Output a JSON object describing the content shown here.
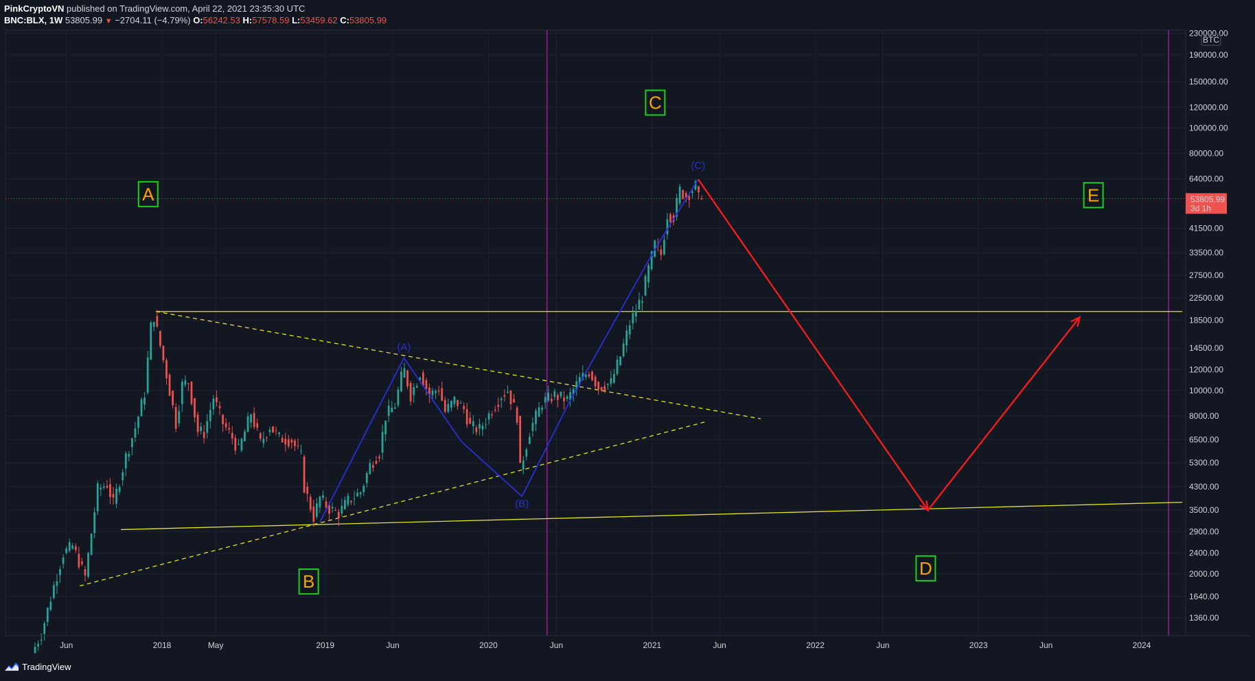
{
  "header": {
    "author": "PinkCryptoVN",
    "published": "published on TradingView.com, April 22, 2021 23:35:30 UTC",
    "symbol": "BNC:BLX, 1W",
    "last": "53805.99",
    "change": "−2704.11 (−4.79%)",
    "o_label": "O:",
    "o_value": "56242.53",
    "h_label": "H:",
    "h_value": "57578.59",
    "l_label": "L:",
    "l_value": "53459.62",
    "c_label": "C:",
    "c_value": "53805.99"
  },
  "footer": {
    "brand": "TradingView",
    "logo_icon": "tradingview-logo-icon"
  },
  "colors": {
    "background": "#131722",
    "up": "#26a69a",
    "down": "#ef5350",
    "support_line": "#e6e61e",
    "wave_line": "#2b2fd3",
    "projection": "#f21d1d",
    "vertical_marker": "#b61fb6",
    "label_box": "#1ad11a",
    "label_text": "#f7a600"
  },
  "chart_data": {
    "type": "candlestick",
    "title": "BNC:BLX, 1W",
    "price_scale": "log",
    "currency_label": "BTC",
    "last_price": "53805.99",
    "last_price_countdown": "3d 1h",
    "y_ticks": [
      "230000.00",
      "190000.00",
      "150000.00",
      "120000.00",
      "100000.00",
      "80000.00",
      "64000.00",
      "41500.00",
      "33500.00",
      "27500.00",
      "22500.00",
      "18500.00",
      "14500.00",
      "12000.00",
      "10000.00",
      "8000.00",
      "6500.00",
      "5300.00",
      "4300.00",
      "3500.00",
      "2900.00",
      "2400.00",
      "2000.00",
      "1640.00",
      "1360.00"
    ],
    "x_ticks": [
      {
        "label": "Jun",
        "date": "2017-06-01"
      },
      {
        "label": "2018",
        "date": "2018-01-01"
      },
      {
        "label": "May",
        "date": "2018-05-01"
      },
      {
        "label": "2019",
        "date": "2019-01-01"
      },
      {
        "label": "Jun",
        "date": "2019-06-01"
      },
      {
        "label": "2020",
        "date": "2020-01-01"
      },
      {
        "label": "Jun",
        "date": "2020-06-01"
      },
      {
        "label": "2021",
        "date": "2021-01-01"
      },
      {
        "label": "Jun",
        "date": "2021-06-01"
      },
      {
        "label": "2022",
        "date": "2022-01-01"
      },
      {
        "label": "Jun",
        "date": "2022-06-01"
      },
      {
        "label": "2023",
        "date": "2023-01-01"
      },
      {
        "label": "Jun",
        "date": "2023-06-01"
      },
      {
        "label": "2024",
        "date": "2024-01-01"
      }
    ],
    "price_path": [
      [
        "2017-03-20",
        1000
      ],
      [
        "2017-04-10",
        1180
      ],
      [
        "2017-05-08",
        1800
      ],
      [
        "2017-05-29",
        2400
      ],
      [
        "2017-06-19",
        2550
      ],
      [
        "2017-07-17",
        1950
      ],
      [
        "2017-08-14",
        4200
      ],
      [
        "2017-09-04",
        4400
      ],
      [
        "2017-09-18",
        3700
      ],
      [
        "2017-10-16",
        5600
      ],
      [
        "2017-11-06",
        7200
      ],
      [
        "2017-11-27",
        9800
      ],
      [
        "2017-12-11",
        17500
      ],
      [
        "2017-12-18",
        19200
      ],
      [
        "2018-01-01",
        14800
      ],
      [
        "2018-01-15",
        11500
      ],
      [
        "2018-02-05",
        7500
      ],
      [
        "2018-02-19",
        10500
      ],
      [
        "2018-03-05",
        10800
      ],
      [
        "2018-03-26",
        7000
      ],
      [
        "2018-04-09",
        6900
      ],
      [
        "2018-04-30",
        9400
      ],
      [
        "2018-05-21",
        7500
      ],
      [
        "2018-06-11",
        6600
      ],
      [
        "2018-06-25",
        5900
      ],
      [
        "2018-07-23",
        8200
      ],
      [
        "2018-08-13",
        6300
      ],
      [
        "2018-09-03",
        7300
      ],
      [
        "2018-09-24",
        6600
      ],
      [
        "2018-10-22",
        6450
      ],
      [
        "2018-11-12",
        5600
      ],
      [
        "2018-11-19",
        4300
      ],
      [
        "2018-12-10",
        3300
      ],
      [
        "2018-12-24",
        3900
      ],
      [
        "2019-01-14",
        3550
      ],
      [
        "2019-02-04",
        3400
      ],
      [
        "2019-02-25",
        3800
      ],
      [
        "2019-03-25",
        4100
      ],
      [
        "2019-04-15",
        5200
      ],
      [
        "2019-05-06",
        5800
      ],
      [
        "2019-05-20",
        8000
      ],
      [
        "2019-06-10",
        8800
      ],
      [
        "2019-06-24",
        11200
      ],
      [
        "2019-07-01",
        11900
      ],
      [
        "2019-07-15",
        9600
      ],
      [
        "2019-08-05",
        11700
      ],
      [
        "2019-08-26",
        9600
      ],
      [
        "2019-09-16",
        10200
      ],
      [
        "2019-09-30",
        8300
      ],
      [
        "2019-10-21",
        9200
      ],
      [
        "2019-11-11",
        8500
      ],
      [
        "2019-11-25",
        7300
      ],
      [
        "2019-12-16",
        7100
      ],
      [
        "2020-01-06",
        8100
      ],
      [
        "2020-02-03",
        9600
      ],
      [
        "2020-02-17",
        10000
      ],
      [
        "2020-03-09",
        8000
      ],
      [
        "2020-03-16",
        5000
      ],
      [
        "2020-04-06",
        7000
      ],
      [
        "2020-05-04",
        9000
      ],
      [
        "2020-06-01",
        9600
      ],
      [
        "2020-06-29",
        9200
      ],
      [
        "2020-07-27",
        11000
      ],
      [
        "2020-08-17",
        11800
      ],
      [
        "2020-09-07",
        10300
      ],
      [
        "2020-10-05",
        10700
      ],
      [
        "2020-10-26",
        13500
      ],
      [
        "2020-11-16",
        18000
      ],
      [
        "2020-12-14",
        23000
      ],
      [
        "2020-12-28",
        29000
      ],
      [
        "2021-01-11",
        36000
      ],
      [
        "2021-01-25",
        33000
      ],
      [
        "2021-02-08",
        47000
      ],
      [
        "2021-02-22",
        46000
      ],
      [
        "2021-03-08",
        58000
      ],
      [
        "2021-03-22",
        55000
      ],
      [
        "2021-04-12",
        60000
      ],
      [
        "2021-04-19",
        53806
      ]
    ],
    "trend_lines": [
      {
        "name": "resistance",
        "price": 20000,
        "from": "2017-12-18",
        "to": "2024-04-01",
        "style": "solid"
      },
      {
        "name": "support",
        "from": [
          "2017-10-01",
          2950
        ],
        "to": [
          "2024-04-01",
          3750
        ],
        "style": "solid"
      },
      {
        "name": "upper-dashed",
        "from": [
          "2017-12-18",
          20000
        ],
        "to": [
          "2021-09-01",
          7800
        ],
        "style": "dashed"
      },
      {
        "name": "lower-dashed",
        "from": [
          "2017-07-01",
          1800
        ],
        "to": [
          "2021-05-01",
          7600
        ],
        "style": "dashed"
      }
    ],
    "wave_lines": [
      [
        "2018-12-20",
        3150
      ],
      [
        "2019-06-26",
        13300
      ],
      [
        "2019-11-01",
        6400
      ],
      [
        "2020-03-16",
        3950
      ],
      [
        "2020-07-01",
        9100
      ],
      [
        "2021-01-05",
        34000
      ],
      [
        "2021-04-14",
        63800
      ]
    ],
    "projection_lines": [
      [
        "2021-04-14",
        63800
      ],
      [
        "2022-09-10",
        3500
      ],
      [
        "2023-08-15",
        19000
      ]
    ],
    "vertical_markers": [
      "2020-05-11",
      "2024-03-01"
    ],
    "wave_labels": [
      {
        "text": "A",
        "date": "2017-12-01",
        "price": 56000
      },
      {
        "text": "B",
        "date": "2018-11-25",
        "price": 1870
      },
      {
        "text": "C",
        "date": "2021-01-08",
        "price": 125000
      },
      {
        "text": "D",
        "date": "2022-09-05",
        "price": 2100
      },
      {
        "text": "E",
        "date": "2023-09-15",
        "price": 55500
      }
    ],
    "sub_wave_labels": [
      {
        "text": "(A)",
        "date": "2019-06-26",
        "price": 14200
      },
      {
        "text": "(B)",
        "date": "2020-03-16",
        "price": 3600
      },
      {
        "text": "(C)",
        "date": "2021-04-14",
        "price": 70000
      }
    ]
  }
}
